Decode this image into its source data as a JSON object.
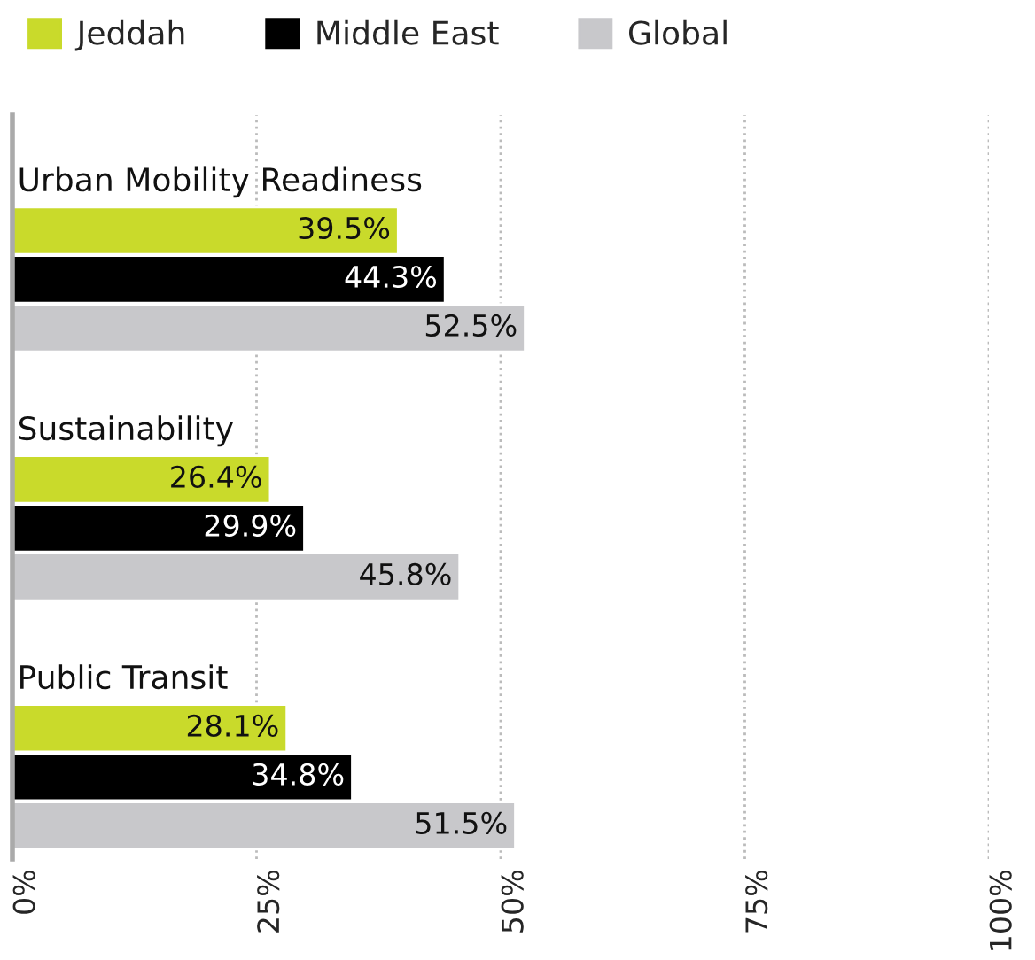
{
  "chart_data": {
    "type": "bar",
    "orientation": "horizontal",
    "categories": [
      "Urban Mobility Readiness",
      "Sustainability",
      "Public Transit"
    ],
    "series": [
      {
        "name": "Jeddah",
        "color": "#c9da2b",
        "values": [
          39.5,
          26.4,
          28.1
        ],
        "value_labels": [
          "39.5%",
          "26.4%",
          "28.1%"
        ]
      },
      {
        "name": "Middle East",
        "color": "#000000",
        "values": [
          44.3,
          29.9,
          34.8
        ],
        "value_labels": [
          "44.3%",
          "29.9%",
          "34.8%"
        ]
      },
      {
        "name": "Global",
        "color": "#c8c8cb",
        "values": [
          52.5,
          45.8,
          51.5
        ],
        "value_labels": [
          "52.5%",
          "45.8%",
          "51.5%"
        ]
      }
    ],
    "xlim": [
      0,
      100
    ],
    "xticks": [
      {
        "value": 0,
        "label": "0%"
      },
      {
        "value": 25,
        "label": "25%"
      },
      {
        "value": 50,
        "label": "50%"
      },
      {
        "value": 75,
        "label": "75%"
      },
      {
        "value": 100,
        "label": "100%"
      }
    ],
    "grid": "x",
    "legend": "top left"
  }
}
